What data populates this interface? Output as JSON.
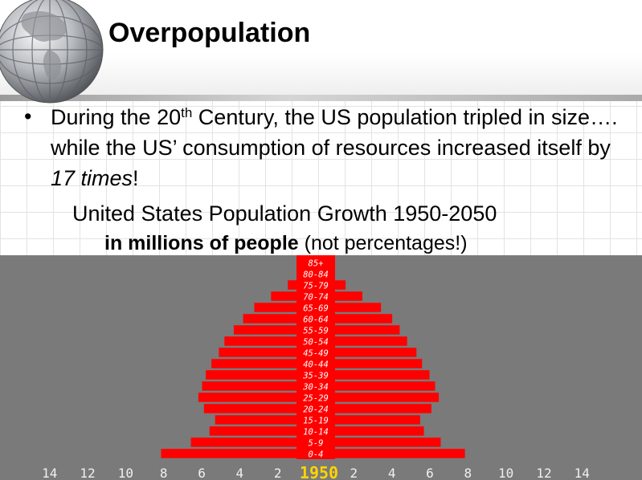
{
  "slide": {
    "title": "Overpopulation",
    "bullet": {
      "part1": "During the 20",
      "sup": "th",
      "part2": " Century, the US population tripled in size…. while the US’ consumption of resources increased itself by ",
      "emph": "17 times",
      "part3": "!"
    },
    "subtitle_line1": "United States Population Growth 1950-2050",
    "subtitle_bold": "in millions of people",
    "subtitle_rest": " (not percentages!)"
  },
  "colors": {
    "bar": "#ff0000",
    "chart_background": "#7a7a7a",
    "axis_text": "#f0f0f0",
    "year_text": "#ffd400",
    "label_text": "#ffffff"
  },
  "chart_data": {
    "type": "bar",
    "orientation": "horizontal",
    "style": "population-pyramid",
    "year": "1950",
    "xlim": [
      -14,
      14
    ],
    "xticks": [
      "14",
      "12",
      "10",
      "8",
      "6",
      "4",
      "2",
      "2",
      "4",
      "6",
      "8",
      "10",
      "12",
      "14"
    ],
    "categories": [
      "85+",
      "80-84",
      "75-79",
      "70-74",
      "65-69",
      "60-64",
      "55-59",
      "50-54",
      "45-49",
      "40-44",
      "35-39",
      "30-34",
      "25-29",
      "20-24",
      "15-19",
      "10-14",
      "5-9",
      "0-4"
    ],
    "series": [
      {
        "values": [
          0.5,
          1.0,
          1.5,
          2.4,
          3.3,
          3.9,
          4.4,
          4.9,
          5.2,
          5.6,
          5.9,
          6.1,
          6.3,
          6.0,
          5.4,
          5.7,
          6.7,
          8.3
        ]
      },
      {
        "values": [
          0.5,
          1.0,
          1.6,
          2.5,
          3.5,
          4.1,
          4.5,
          4.9,
          5.4,
          5.7,
          6.1,
          6.4,
          6.6,
          6.2,
          5.6,
          5.8,
          6.7,
          8.0
        ]
      }
    ]
  }
}
